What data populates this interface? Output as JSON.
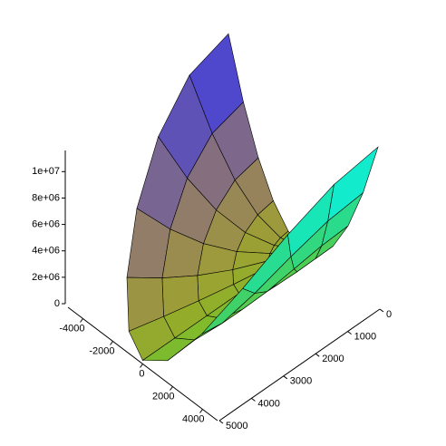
{
  "chart_data": {
    "type": "surface3d",
    "r": [
      0,
      1000,
      2000,
      3000,
      4000,
      5000
    ],
    "theta": [
      0,
      15,
      30,
      45,
      60,
      75,
      90,
      105,
      120,
      135,
      150,
      165,
      180
    ],
    "z": [
      [
        0,
        0,
        0,
        0,
        0,
        0,
        0,
        0,
        0,
        0,
        0,
        0,
        0
      ],
      [
        480000,
        448000,
        360000,
        240000,
        120000,
        32000,
        0,
        32000,
        120000,
        240000,
        360000,
        448000,
        480000
      ],
      [
        1920000,
        1791000,
        1440000,
        960000,
        480000,
        129000,
        0,
        129000,
        480000,
        960000,
        1440000,
        1791000,
        1920000
      ],
      [
        4320000,
        4031000,
        3240000,
        2160000,
        1080000,
        289000,
        0,
        289000,
        1080000,
        2160000,
        3240000,
        4031000,
        4320000
      ],
      [
        7680000,
        7166000,
        5760000,
        3840000,
        1920000,
        515000,
        0,
        515000,
        1920000,
        3840000,
        5760000,
        7166000,
        7680000
      ],
      [
        12000000,
        11196000,
        9000000,
        6000000,
        3000000,
        804000,
        0,
        804000,
        3000000,
        6000000,
        9000000,
        11196000,
        12000000
      ]
    ],
    "xlim": [
      -5000,
      5000
    ],
    "ylim": [
      0,
      5000
    ],
    "zlim": [
      0,
      11600000
    ],
    "xticks": [
      -4000,
      -2000,
      0,
      2000,
      4000
    ],
    "yticks": [
      0,
      1000,
      2000,
      3000,
      4000,
      5000
    ],
    "zticks": [
      0,
      {
        "value": 2000000,
        "label": "2e+06"
      },
      {
        "value": 4000000,
        "label": "4e+06"
      },
      {
        "value": 6000000,
        "label": "6e+06"
      },
      {
        "value": 8000000,
        "label": "8e+06"
      },
      {
        "value": 10000000,
        "label": "1e+07"
      }
    ]
  }
}
